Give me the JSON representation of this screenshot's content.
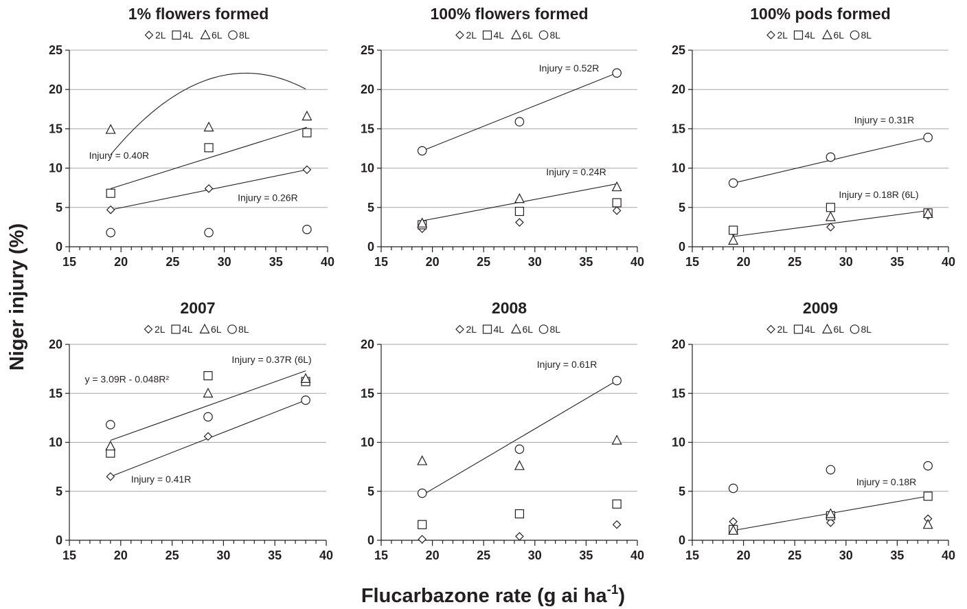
{
  "figure": {
    "y_axis_label": "Niger injury (%)",
    "x_axis_label_main": "Flucarbazone rate (g ai ha",
    "x_axis_label_sup": "-1",
    "x_axis_label_close": ")"
  },
  "chart_data": [
    {
      "type": "scatter",
      "title": "1% flowers formed",
      "legend": [
        "2L",
        "4L",
        "6L",
        "8L"
      ],
      "legend_position": "top-center",
      "xlim": [
        15,
        40
      ],
      "ylim": [
        0,
        25
      ],
      "x_ticks": [
        15,
        20,
        25,
        30,
        35,
        40
      ],
      "y_ticks": [
        0,
        5,
        10,
        15,
        20,
        25
      ],
      "grid": "horizontal",
      "x": [
        19,
        28.5,
        38
      ],
      "series": [
        {
          "name": "2L",
          "marker": "diamond",
          "values": [
            4.7,
            7.4,
            9.8
          ]
        },
        {
          "name": "4L",
          "marker": "square",
          "values": [
            6.8,
            12.6,
            14.5
          ]
        },
        {
          "name": "6L",
          "marker": "triangle",
          "values": [
            14.9,
            15.2,
            16.6
          ]
        },
        {
          "name": "8L",
          "marker": "circle",
          "values": [
            1.8,
            1.8,
            2.2
          ]
        }
      ],
      "fits": [
        {
          "type": "linear",
          "label": "Injury = 0.40R",
          "points": [
            [
              19,
              7.4
            ],
            [
              38,
              15.2
            ]
          ]
        },
        {
          "type": "linear",
          "label": "Injury = 0.26R",
          "points": [
            [
              19,
              4.7
            ],
            [
              38,
              9.8
            ]
          ]
        }
      ],
      "annotations": [
        {
          "text": "Injury = 0.40R",
          "x": 16.9,
          "y": 11.2
        },
        {
          "text": "Injury = 0.26R",
          "x": 31.3,
          "y": 5.8
        }
      ]
    },
    {
      "type": "scatter",
      "title": "100% flowers formed",
      "legend": [
        "2L",
        "4L",
        "6L",
        "8L"
      ],
      "legend_position": "top-center",
      "xlim": [
        15,
        40
      ],
      "ylim": [
        0,
        25
      ],
      "x_ticks": [
        15,
        20,
        25,
        30,
        35,
        40
      ],
      "y_ticks": [
        0,
        5,
        10,
        15,
        20,
        25
      ],
      "grid": "horizontal",
      "x": [
        19,
        28.5,
        38
      ],
      "series": [
        {
          "name": "2L",
          "marker": "diamond",
          "values": [
            2.3,
            3.1,
            4.6
          ]
        },
        {
          "name": "4L",
          "marker": "square",
          "values": [
            2.8,
            4.5,
            5.6
          ]
        },
        {
          "name": "6L",
          "marker": "triangle",
          "values": [
            3.0,
            6.1,
            7.6
          ]
        },
        {
          "name": "8L",
          "marker": "circle",
          "values": [
            12.2,
            15.9,
            22.1
          ]
        }
      ],
      "fits": [
        {
          "type": "linear",
          "label": "Injury = 0.52R",
          "points": [
            [
              19,
              12.2
            ],
            [
              38,
              22.1
            ]
          ]
        },
        {
          "type": "linear",
          "label": "Injury = 0.24R",
          "points": [
            [
              19,
              3.3
            ],
            [
              38,
              8.0
            ]
          ]
        }
      ],
      "annotations": [
        {
          "text": "Injury = 0.52R",
          "x": 30.4,
          "y": 22.3
        },
        {
          "text": "Injury = 0.24R",
          "x": 31.1,
          "y": 9.1
        }
      ]
    },
    {
      "type": "scatter",
      "title": "100% pods formed",
      "legend": [
        "2L",
        "4L",
        "6L",
        "8L"
      ],
      "legend_position": "top-center",
      "xlim": [
        15,
        40
      ],
      "ylim": [
        0,
        25
      ],
      "x_ticks": [
        15,
        20,
        25,
        30,
        35,
        40
      ],
      "y_ticks": [
        0,
        5,
        10,
        15,
        20,
        25
      ],
      "grid": "horizontal",
      "x": [
        19,
        28.5,
        38
      ],
      "series": [
        {
          "name": "2L",
          "marker": "diamond",
          "values": [
            1.9,
            2.5,
            4.0
          ]
        },
        {
          "name": "4L",
          "marker": "square",
          "values": [
            2.1,
            5.0,
            4.3
          ]
        },
        {
          "name": "6L",
          "marker": "triangle",
          "values": [
            0.8,
            3.8,
            4.2
          ]
        },
        {
          "name": "8L",
          "marker": "circle",
          "values": [
            8.1,
            11.4,
            13.9
          ]
        }
      ],
      "fits": [
        {
          "type": "linear",
          "label": "Injury = 0.31R",
          "points": [
            [
              19,
              8.1
            ],
            [
              38,
              13.9
            ]
          ]
        },
        {
          "type": "linear",
          "label": "Injury = 0.18R (6L)",
          "points": [
            [
              19,
              1.3
            ],
            [
              38,
              4.6
            ]
          ]
        }
      ],
      "annotations": [
        {
          "text": "Injury = 0.31R",
          "x": 30.8,
          "y": 15.7
        },
        {
          "text": "Injury = 0.18R (6L)",
          "x": 29.3,
          "y": 6.2
        }
      ]
    },
    {
      "type": "scatter",
      "title": "2007",
      "legend": [
        "2L",
        "4L",
        "6L",
        "8L"
      ],
      "legend_position": "top-center",
      "xlim": [
        15,
        40
      ],
      "ylim": [
        0,
        20
      ],
      "x_ticks": [
        15,
        20,
        25,
        30,
        35,
        40
      ],
      "y_ticks": [
        0,
        5,
        10,
        15,
        20
      ],
      "grid": "horizontal",
      "x": [
        19,
        28.5,
        38
      ],
      "series": [
        {
          "name": "2L",
          "marker": "diamond",
          "values": [
            6.5,
            10.6,
            14.3
          ]
        },
        {
          "name": "4L",
          "marker": "square",
          "values": [
            8.9,
            16.8,
            16.2
          ]
        },
        {
          "name": "6L",
          "marker": "triangle",
          "values": [
            9.6,
            15.0,
            16.5
          ]
        },
        {
          "name": "8L",
          "marker": "circle",
          "values": [
            11.8,
            12.6,
            14.3
          ]
        }
      ],
      "fits": [
        {
          "type": "quadratic",
          "label": "y = 3.09R - 0.048R²",
          "x_range": [
            19,
            38
          ],
          "a": -2.04,
          "b": 3.09,
          "c": -0.048
        },
        {
          "type": "linear",
          "label": "Injury = 0.37R (6L)",
          "points": [
            [
              19,
              10.2
            ],
            [
              38,
              17.3
            ]
          ]
        },
        {
          "type": "linear",
          "label": "Injury = 0.41R",
          "points": [
            [
              19,
              6.5
            ],
            [
              38,
              14.3
            ]
          ]
        }
      ],
      "annotations": [
        {
          "text": "y = 3.09R - 0.048R²",
          "x": 16.5,
          "y": 16.1
        },
        {
          "text": "Injury = 0.37R (6L)",
          "x": 30.8,
          "y": 18.1
        },
        {
          "text": "Injury = 0.41R",
          "x": 21.0,
          "y": 5.9
        }
      ]
    },
    {
      "type": "scatter",
      "title": "2008",
      "legend": [
        "2L",
        "4L",
        "6L",
        "8L"
      ],
      "legend_position": "top-center",
      "xlim": [
        15,
        40
      ],
      "ylim": [
        0,
        20
      ],
      "x_ticks": [
        15,
        20,
        25,
        30,
        35,
        40
      ],
      "y_ticks": [
        0,
        5,
        10,
        15,
        20
      ],
      "grid": "horizontal",
      "x": [
        19,
        28.5,
        38
      ],
      "series": [
        {
          "name": "2L",
          "marker": "diamond",
          "values": [
            0.1,
            0.4,
            1.6
          ]
        },
        {
          "name": "4L",
          "marker": "square",
          "values": [
            1.6,
            2.7,
            3.7
          ]
        },
        {
          "name": "6L",
          "marker": "triangle",
          "values": [
            8.1,
            7.6,
            10.2
          ]
        },
        {
          "name": "8L",
          "marker": "circle",
          "values": [
            4.8,
            9.3,
            16.3
          ]
        }
      ],
      "fits": [
        {
          "type": "linear",
          "label": "Injury = 0.61R",
          "points": [
            [
              19,
              4.6
            ],
            [
              38,
              16.3
            ]
          ]
        }
      ],
      "annotations": [
        {
          "text": "Injury = 0.61R",
          "x": 30.2,
          "y": 17.6
        }
      ]
    },
    {
      "type": "scatter",
      "title": "2009",
      "legend": [
        "2L",
        "4L",
        "6L",
        "8L"
      ],
      "legend_position": "top-center",
      "xlim": [
        15,
        40
      ],
      "ylim": [
        0,
        20
      ],
      "x_ticks": [
        15,
        20,
        25,
        30,
        35,
        40
      ],
      "y_ticks": [
        0,
        5,
        10,
        15,
        20
      ],
      "grid": "horizontal",
      "x": [
        19,
        28.5,
        38
      ],
      "series": [
        {
          "name": "2L",
          "marker": "diamond",
          "values": [
            1.9,
            1.8,
            2.2
          ]
        },
        {
          "name": "4L",
          "marker": "square",
          "values": [
            1.1,
            2.5,
            4.5
          ]
        },
        {
          "name": "6L",
          "marker": "triangle",
          "values": [
            1.0,
            2.7,
            1.6
          ]
        },
        {
          "name": "8L",
          "marker": "circle",
          "values": [
            5.3,
            7.2,
            7.6
          ]
        }
      ],
      "fits": [
        {
          "type": "linear",
          "label": "Injury = 0.18R",
          "points": [
            [
              19,
              1.0
            ],
            [
              38,
              4.5
            ]
          ]
        }
      ],
      "annotations": [
        {
          "text": "Injury = 0.18R",
          "x": 31.0,
          "y": 5.6
        }
      ]
    }
  ]
}
